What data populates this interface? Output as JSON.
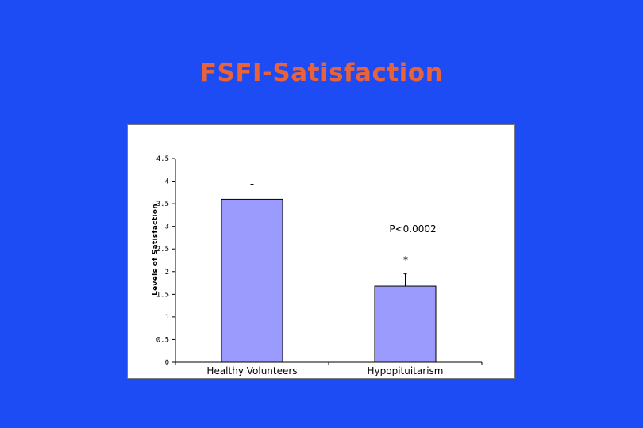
{
  "slide": {
    "title": "FSFI-Satisfaction"
  },
  "colors": {
    "background": "#1d4cf5",
    "title": "#e8623a",
    "bar": "#9b9bfe"
  },
  "chart_data": {
    "type": "bar",
    "title": "",
    "xlabel": "",
    "ylabel": "Levels of Satisfaction",
    "categories": [
      "Healthy Volunteers",
      "Hypopituitarism"
    ],
    "values": [
      3.6,
      1.68
    ],
    "errors": [
      0.33,
      0.27
    ],
    "ylim": [
      0,
      4.5
    ],
    "yticks": [
      0,
      0.5,
      1,
      1.5,
      2,
      2.5,
      3,
      3.5,
      4,
      4.5
    ],
    "ytick_labels": [
      "0",
      "0.5",
      "1",
      "1.5",
      "2",
      "2.5",
      "3",
      "3.5",
      "4",
      "4.5"
    ],
    "annotations": {
      "pvalue": "P<0.0002",
      "significance": "*"
    },
    "grid": false,
    "legend": "none"
  }
}
